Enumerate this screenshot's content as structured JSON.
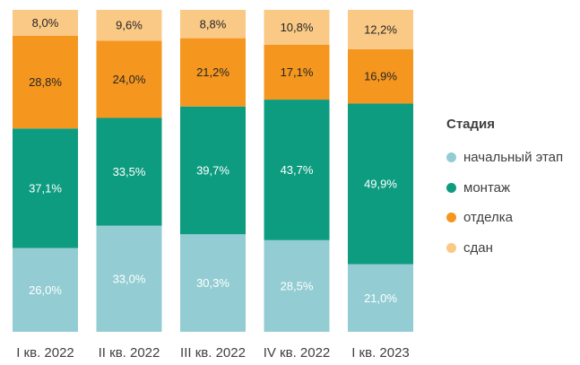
{
  "chart_data": {
    "type": "bar",
    "stacked": true,
    "normalized": true,
    "categories": [
      "I кв. 2022",
      "II кв. 2022",
      "III кв. 2022",
      "IV кв. 2022",
      "I кв. 2023"
    ],
    "series": [
      {
        "name": "начальный этап",
        "color": "#93CDD3",
        "label_color": "#ffffff",
        "values": [
          26.0,
          33.0,
          30.3,
          28.5,
          21.0
        ],
        "labels": [
          "26,0%",
          "33,0%",
          "30,3%",
          "28,5%",
          "21,0%"
        ]
      },
      {
        "name": "монтаж",
        "color": "#0E9C80",
        "label_color": "#ffffff",
        "values": [
          37.1,
          33.5,
          39.7,
          43.7,
          49.9
        ],
        "labels": [
          "37,1%",
          "33,5%",
          "39,7%",
          "43,7%",
          "49,9%"
        ]
      },
      {
        "name": "отделка",
        "color": "#F5961F",
        "label_color": "#262626",
        "values": [
          28.8,
          24.0,
          21.2,
          17.1,
          16.9
        ],
        "labels": [
          "28,8%",
          "24,0%",
          "21,2%",
          "17,1%",
          "16,9%"
        ]
      },
      {
        "name": "сдан",
        "color": "#FAC986",
        "label_color": "#262626",
        "values": [
          8.0,
          9.6,
          8.8,
          10.8,
          12.2
        ],
        "labels": [
          "8,0%",
          "9,6%",
          "8,8%",
          "10,8%",
          "12,2%"
        ]
      }
    ],
    "ylim": [
      0,
      100
    ],
    "legend": {
      "title": "Стадия",
      "position": "right"
    },
    "grid": false
  }
}
